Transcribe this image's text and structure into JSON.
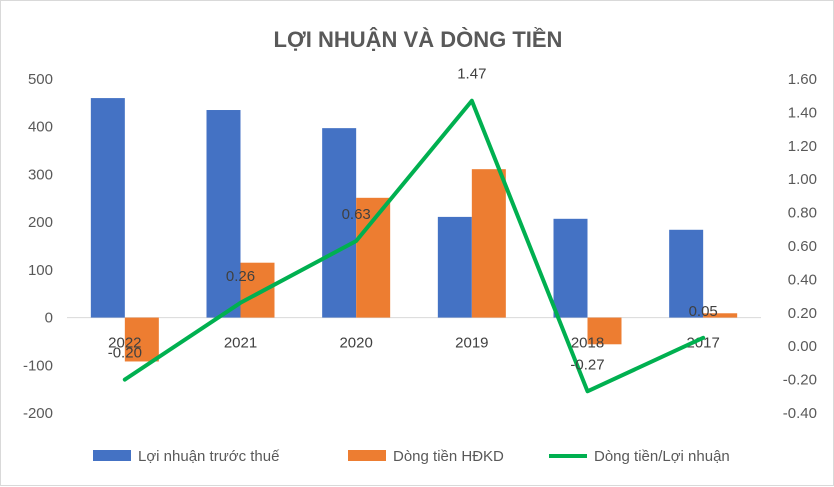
{
  "chart_data": {
    "type": "bar",
    "title": "LỢI NHUẬN VÀ DÒNG TIỀN",
    "categories": [
      "2022",
      "2021",
      "2020",
      "2019",
      "2018",
      "2017"
    ],
    "left_axis": {
      "min": -200,
      "max": 500,
      "step": 100,
      "ticks": [
        "500",
        "400",
        "300",
        "200",
        "100",
        "0",
        "-100",
        "-200"
      ]
    },
    "right_axis": {
      "min": -0.4,
      "max": 1.6,
      "step": 0.2,
      "ticks": [
        "1.60",
        "1.40",
        "1.20",
        "1.00",
        "0.80",
        "0.60",
        "0.40",
        "0.20",
        "0.00",
        "-0.20",
        "-0.40"
      ]
    },
    "series": [
      {
        "name": "Lợi nhuận trước thuế",
        "kind": "bar",
        "axis": "left",
        "color": "#4472c4",
        "values": [
          460,
          435,
          397,
          211,
          207,
          184
        ]
      },
      {
        "name": "Dòng tiền HĐKD",
        "kind": "bar",
        "axis": "left",
        "color": "#ed7d31",
        "values": [
          -92,
          115,
          251,
          311,
          -56,
          9
        ]
      },
      {
        "name": "Dòng tiền/Lợi nhuận",
        "kind": "line",
        "axis": "right",
        "color": "#00b050",
        "values": [
          -0.2,
          0.26,
          0.63,
          1.47,
          -0.27,
          0.05
        ],
        "labels": [
          "-0.20",
          "0.26",
          "0.63",
          "1.47",
          "-0.27",
          "0.05"
        ]
      }
    ],
    "legend": "bottom",
    "grid": false
  }
}
